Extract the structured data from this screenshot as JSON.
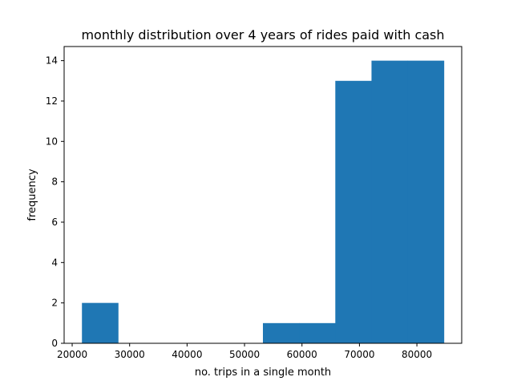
{
  "chart_data": {
    "type": "bar",
    "title": "monthly distribution over 4 years of rides paid with cash",
    "xlabel": "no. trips in a single month",
    "ylabel": "frequency",
    "bins": [
      {
        "start": 21700,
        "end": 28000,
        "count": 2
      },
      {
        "start": 28000,
        "end": 34300,
        "count": 0
      },
      {
        "start": 34300,
        "end": 40600,
        "count": 0
      },
      {
        "start": 40600,
        "end": 46900,
        "count": 0
      },
      {
        "start": 46900,
        "end": 53200,
        "count": 0
      },
      {
        "start": 53200,
        "end": 59500,
        "count": 1
      },
      {
        "start": 59500,
        "end": 65800,
        "count": 1
      },
      {
        "start": 65800,
        "end": 72100,
        "count": 13
      },
      {
        "start": 72100,
        "end": 78400,
        "count": 14
      },
      {
        "start": 78400,
        "end": 84700,
        "count": 14
      }
    ],
    "xlim": [
      18600,
      87800
    ],
    "ylim": [
      0,
      14.7
    ],
    "x_ticks": [
      20000,
      30000,
      40000,
      50000,
      60000,
      70000,
      80000
    ],
    "y_ticks": [
      0,
      2,
      4,
      6,
      8,
      10,
      12,
      14
    ],
    "bar_color": "#1f77b4",
    "grid": false
  }
}
